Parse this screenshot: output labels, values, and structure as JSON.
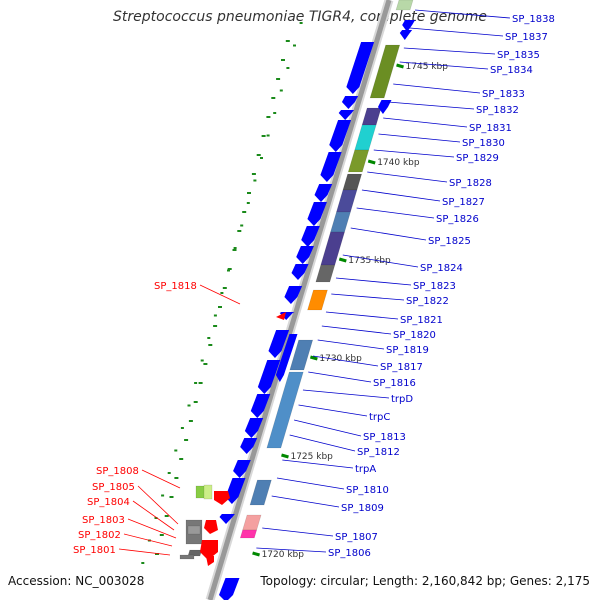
{
  "title": "Streptococcus pneumoniae TIGR4, complete genome",
  "footer": {
    "accession": "Accession: NC_003028",
    "topology": "Topology: circular; Length: 2,160,842 bp; Genes: 2,175"
  },
  "colors": {
    "backbone": "#999999",
    "feature_blue": "#0000ff",
    "gene_label": "#0000cc",
    "highlight_label": "#ff0000",
    "tick": "#008800",
    "tick_label": "#333333",
    "dot": "#1a8a1a"
  },
  "scale_ticks": [
    {
      "label": "1745 kbp"
    },
    {
      "label": "1740 kbp"
    },
    {
      "label": "1735 kbp"
    },
    {
      "label": "1730 kbp"
    },
    {
      "label": "1725 kbp"
    },
    {
      "label": "1720 kbp"
    }
  ],
  "gene_labels": [
    {
      "text": "SP_1838"
    },
    {
      "text": "SP_1837"
    },
    {
      "text": "SP_1835"
    },
    {
      "text": "SP_1834"
    },
    {
      "text": "SP_1833"
    },
    {
      "text": "SP_1832"
    },
    {
      "text": "SP_1831"
    },
    {
      "text": "SP_1830"
    },
    {
      "text": "SP_1829"
    },
    {
      "text": "SP_1828"
    },
    {
      "text": "SP_1827"
    },
    {
      "text": "SP_1826"
    },
    {
      "text": "SP_1825"
    },
    {
      "text": "SP_1824"
    },
    {
      "text": "SP_1823"
    },
    {
      "text": "SP_1822"
    },
    {
      "text": "SP_1821"
    },
    {
      "text": "SP_1820"
    },
    {
      "text": "SP_1819"
    },
    {
      "text": "SP_1817"
    },
    {
      "text": "SP_1816"
    },
    {
      "text": "trpD"
    },
    {
      "text": "trpC"
    },
    {
      "text": "SP_1813"
    },
    {
      "text": "SP_1812"
    },
    {
      "text": "trpA"
    },
    {
      "text": "SP_1810"
    },
    {
      "text": "SP_1809"
    },
    {
      "text": "SP_1807"
    },
    {
      "text": "SP_1806"
    }
  ],
  "highlighted_labels": [
    {
      "text": "SP_1818"
    },
    {
      "text": "SP_1808"
    },
    {
      "text": "SP_1805"
    },
    {
      "text": "SP_1804"
    },
    {
      "text": "SP_1803"
    },
    {
      "text": "SP_1802"
    },
    {
      "text": "SP_1801"
    }
  ]
}
